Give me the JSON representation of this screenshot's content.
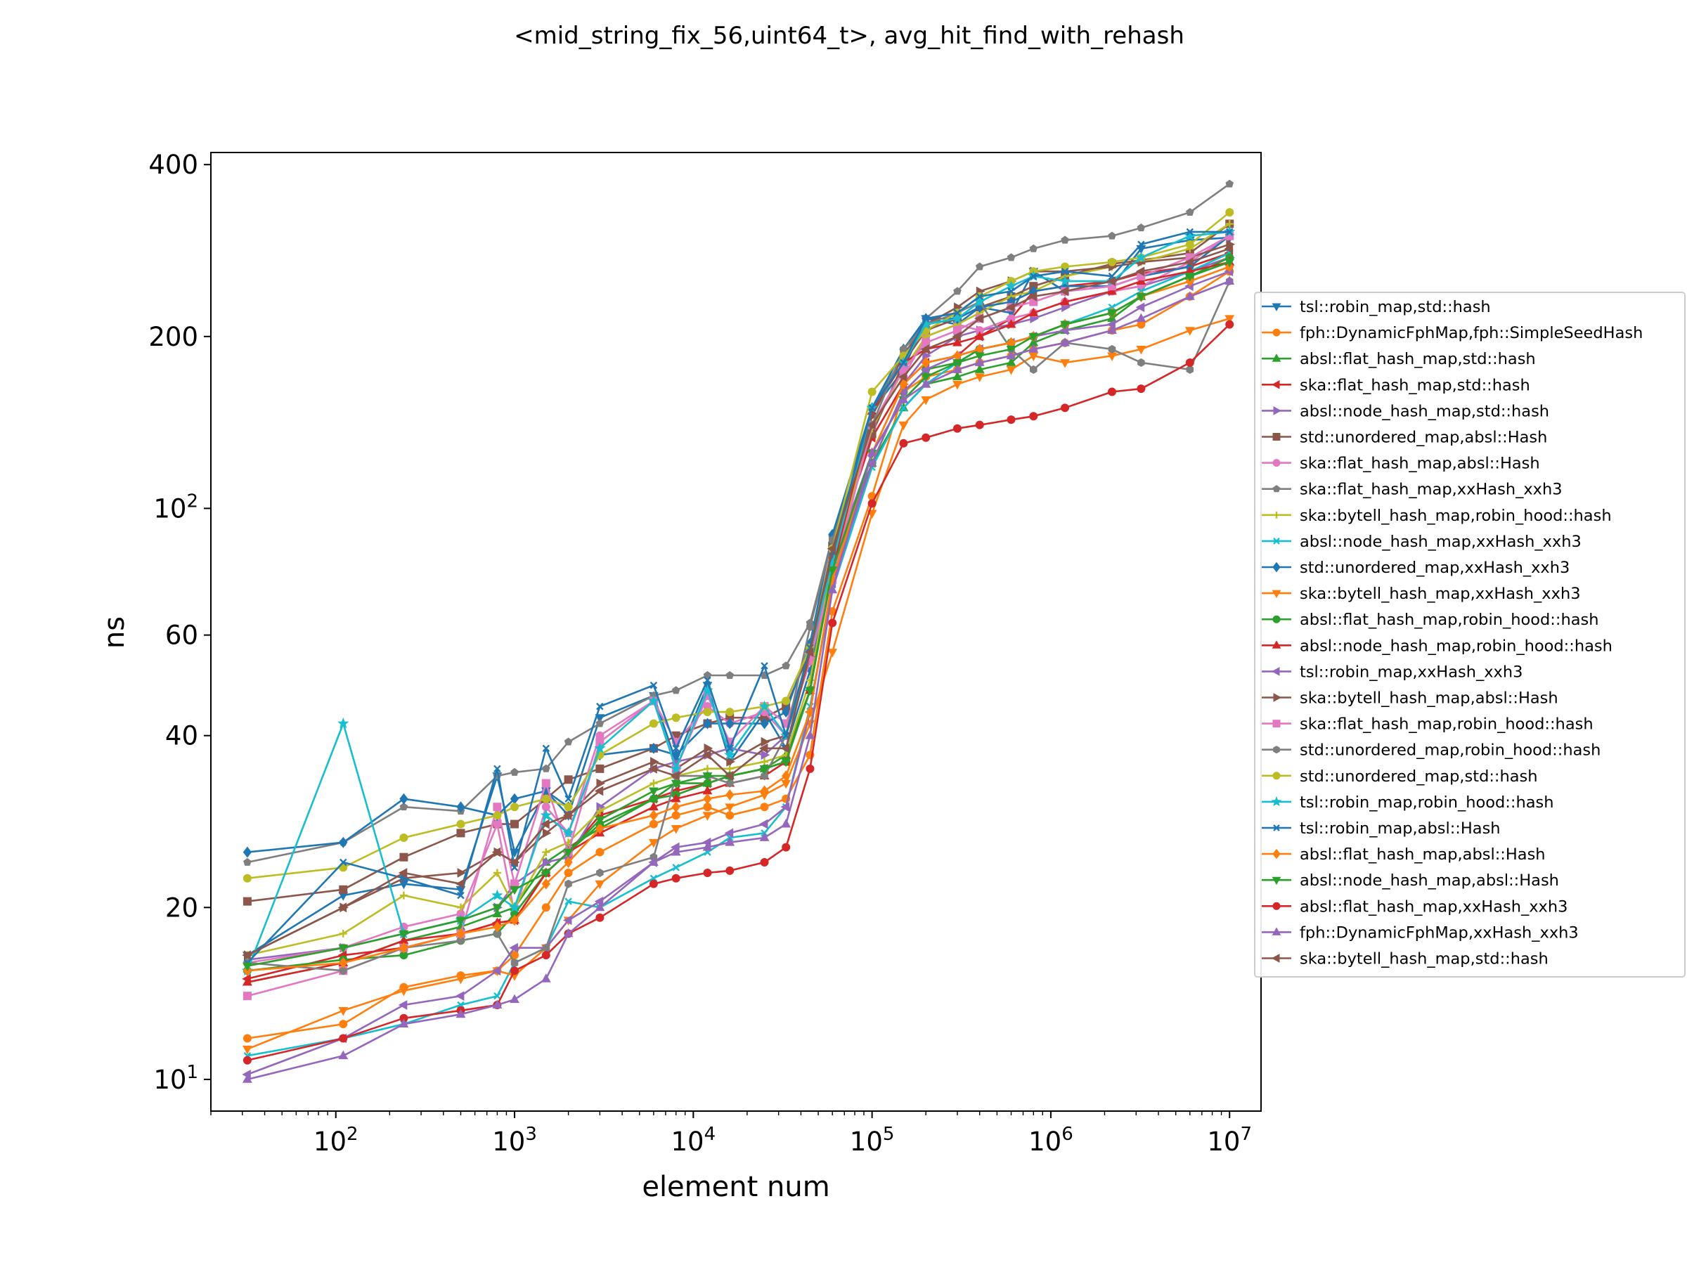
{
  "chart_data": {
    "type": "line",
    "title": "<mid_string_fix_56,uint64_t>, avg_hit_find_with_rehash",
    "xlabel": "element num",
    "ylabel": "ns",
    "xscale": "log",
    "yscale": "log",
    "xlim": [
      20,
      15000000
    ],
    "ylim": [
      8.8,
      420
    ],
    "x_ticks": [
      {
        "value": 100,
        "base": "10",
        "exp": "2"
      },
      {
        "value": 1000,
        "base": "10",
        "exp": "3"
      },
      {
        "value": 10000,
        "base": "10",
        "exp": "4"
      },
      {
        "value": 100000,
        "base": "10",
        "exp": "5"
      },
      {
        "value": 1000000,
        "base": "10",
        "exp": "6"
      },
      {
        "value": 10000000,
        "base": "10",
        "exp": "7"
      }
    ],
    "y_ticks": [
      {
        "value": 10,
        "base": "10",
        "exp": "1"
      },
      {
        "value": 20,
        "text": "20"
      },
      {
        "value": 40,
        "text": "40"
      },
      {
        "value": 60,
        "text": "60"
      },
      {
        "value": 100,
        "base": "10",
        "exp": "2"
      },
      {
        "value": 200,
        "text": "200"
      },
      {
        "value": 400,
        "text": "400"
      }
    ],
    "grid": false,
    "legend_position": "right, outside plot",
    "x": [
      32,
      110,
      240,
      500,
      800,
      1000,
      1500,
      2000,
      3000,
      6000,
      8000,
      12000,
      16000,
      25000,
      33000,
      45000,
      60000,
      100000,
      150000,
      200000,
      300000,
      400000,
      600000,
      800000,
      1200000,
      2200000,
      3200000,
      6000000,
      10000000
    ],
    "series": [
      {
        "name": "tsl::robin_map,std::hash",
        "color": "#1f77b4",
        "marker": "tri_down",
        "values": [
          16.5,
          21,
          22,
          21.5,
          34,
          25,
          32,
          29,
          43,
          47,
          36,
          49,
          36,
          44,
          38,
          52,
          78,
          148,
          175,
          215,
          210,
          225,
          220,
          260,
          240,
          245,
          285,
          295,
          298
        ]
      },
      {
        "name": "fph::DynamicFphMap,fph::SimpleSeedHash",
        "color": "#ff7f0e",
        "marker": "circle",
        "values": [
          11.8,
          12.5,
          14.5,
          15.2,
          15.5,
          16.5,
          20,
          23,
          25,
          28,
          29,
          30,
          29,
          30,
          31,
          37,
          66,
          105,
          160,
          170,
          175,
          180,
          185,
          190,
          195,
          205,
          210,
          235,
          260
        ]
      },
      {
        "name": "absl::flat_hash_map,std::hash",
        "color": "#2ca02c",
        "marker": "triangle_up",
        "values": [
          14.8,
          16,
          17.5,
          18.5,
          19.5,
          20,
          24,
          25.5,
          27.5,
          31,
          33,
          33,
          34,
          35,
          37,
          48,
          78,
          120,
          150,
          165,
          170,
          175,
          180,
          195,
          205,
          215,
          235,
          255,
          270
        ]
      },
      {
        "name": "ska::flat_hash_map,std::hash",
        "color": "#d62728",
        "marker": "triangle_left",
        "values": [
          15,
          16.5,
          17,
          18,
          18.8,
          19,
          23,
          25,
          29,
          31,
          32,
          33,
          34,
          35,
          36,
          48,
          82,
          133,
          165,
          180,
          185,
          200,
          215,
          240,
          245,
          250,
          258,
          265,
          280
        ]
      },
      {
        "name": "absl::node_hash_map,std::hash",
        "color": "#9467bd",
        "marker": "triangle_right",
        "values": [
          16.2,
          17,
          18,
          19,
          20,
          22,
          24,
          24.5,
          30,
          35,
          36,
          37,
          38,
          37,
          40,
          55,
          80,
          125,
          165,
          185,
          200,
          205,
          210,
          215,
          225,
          240,
          245,
          260,
          275
        ]
      },
      {
        "name": "std::unordered_map,absl::Hash",
        "color": "#8c564b",
        "marker": "square",
        "values": [
          20.5,
          21.5,
          24.5,
          27,
          28,
          28,
          31,
          33.5,
          35,
          38,
          40,
          42,
          43,
          43,
          45,
          56,
          86,
          135,
          180,
          205,
          215,
          225,
          235,
          245,
          255,
          268,
          272,
          280,
          315
        ]
      },
      {
        "name": "ska::flat_hash_map,absl::Hash",
        "color": "#e377c2",
        "marker": "circle",
        "values": [
          16,
          17,
          18.5,
          19.5,
          28,
          19.5,
          30,
          27,
          40,
          46,
          39,
          45,
          42,
          44,
          40,
          54,
          78,
          140,
          170,
          200,
          210,
          205,
          215,
          220,
          230,
          240,
          245,
          270,
          300
        ]
      },
      {
        "name": "ska::flat_hash_map,xxHash_xxh3",
        "color": "#7f7f7f",
        "marker": "pentagon",
        "values": [
          24,
          26,
          30,
          29.5,
          34,
          34.5,
          35,
          39,
          42,
          47,
          48,
          51,
          51,
          51,
          53,
          63,
          89,
          150,
          185,
          215,
          240,
          265,
          275,
          285,
          295,
          300,
          310,
          330,
          370
        ]
      },
      {
        "name": "ska::bytell_hash_map,robin_hood::hash",
        "color": "#bcbd22",
        "marker": "plus",
        "values": [
          16.5,
          18,
          21,
          20,
          23,
          20,
          25,
          26,
          29.5,
          33,
          34,
          35,
          35,
          36,
          37,
          50,
          80,
          138,
          175,
          200,
          210,
          220,
          235,
          240,
          255,
          265,
          270,
          285,
          315
        ]
      },
      {
        "name": "absl::node_hash_map,xxHash_xxh3",
        "color": "#17becf",
        "marker": "x",
        "values": [
          11,
          11.8,
          12.5,
          13.5,
          14,
          16,
          17,
          20.5,
          20,
          22.5,
          23.5,
          25,
          26.5,
          27,
          30,
          45,
          72,
          118,
          150,
          165,
          180,
          190,
          195,
          200,
          210,
          225,
          240,
          260,
          280
        ]
      },
      {
        "name": "std::unordered_map,xxHash_xxh3",
        "color": "#1f77b4",
        "marker": "diamond",
        "values": [
          25,
          26,
          31,
          30,
          29,
          31,
          32,
          30,
          37,
          38,
          37,
          42,
          42,
          42,
          44,
          58,
          90,
          150,
          190,
          215,
          215,
          225,
          230,
          240,
          245,
          245,
          255,
          265,
          300
        ]
      },
      {
        "name": "ska::bytell_hash_map,xxHash_xxh3",
        "color": "#ff7f0e",
        "marker": "tri_down",
        "values": [
          11.3,
          13.2,
          14.3,
          15,
          15.5,
          15.2,
          17,
          19,
          22,
          26,
          27.5,
          29,
          30,
          31.5,
          33,
          42,
          56,
          98,
          140,
          155,
          165,
          170,
          175,
          185,
          180,
          185,
          190,
          205,
          215
        ]
      },
      {
        "name": "absl::flat_hash_map,robin_hood::hash",
        "color": "#2ca02c",
        "marker": "circle",
        "values": [
          15.5,
          16.2,
          16.5,
          17.5,
          18,
          19.5,
          23,
          25,
          28,
          31,
          31.5,
          33,
          34,
          35,
          36,
          48,
          79,
          120,
          160,
          175,
          180,
          190,
          195,
          200,
          210,
          220,
          235,
          255,
          275
        ]
      },
      {
        "name": "absl::node_hash_map,robin_hood::hash",
        "color": "#d62728",
        "marker": "triangle_up",
        "values": [
          14.8,
          16,
          17.5,
          18,
          18.8,
          19,
          23,
          25,
          27,
          30,
          31,
          32,
          33,
          34,
          36,
          48,
          78,
          148,
          180,
          190,
          195,
          200,
          210,
          220,
          230,
          240,
          250,
          260,
          270
        ]
      },
      {
        "name": "tsl::robin_map,xxHash_xxh3",
        "color": "#9467bd",
        "marker": "triangle_left",
        "values": [
          10.2,
          11.8,
          13.5,
          14,
          15.5,
          17,
          17,
          19,
          20.5,
          24,
          25.5,
          26,
          27,
          28,
          30,
          44,
          74,
          120,
          160,
          175,
          185,
          190,
          195,
          200,
          205,
          210,
          225,
          245,
          260
        ]
      },
      {
        "name": "ska::bytell_hash_map,absl::Hash",
        "color": "#8c564b",
        "marker": "triangle_right",
        "values": [
          16.5,
          20,
          22.5,
          23,
          25,
          24,
          27,
          29,
          33,
          36,
          35,
          38,
          36,
          39,
          40,
          55,
          82,
          145,
          185,
          210,
          225,
          240,
          250,
          260,
          260,
          265,
          270,
          275,
          290
        ]
      },
      {
        "name": "ska::flat_hash_map,robin_hood::hash",
        "color": "#e377c2",
        "marker": "square",
        "values": [
          14,
          15.5,
          17,
          18,
          30,
          22,
          33,
          25,
          39,
          46,
          35,
          47,
          39,
          45,
          42,
          55,
          75,
          140,
          175,
          195,
          205,
          215,
          225,
          230,
          240,
          245,
          255,
          275,
          300
        ]
      },
      {
        "name": "std::unordered_map,robin_hood::hash",
        "color": "#7f7f7f",
        "marker": "hexagon",
        "values": [
          16,
          15.5,
          17,
          17.5,
          18,
          16,
          17,
          22,
          23,
          24.5,
          34,
          34,
          33,
          34,
          40,
          62,
          88,
          140,
          190,
          210,
          220,
          230,
          190,
          175,
          195,
          190,
          180,
          175,
          250
        ]
      },
      {
        "name": "std::unordered_map,std::hash",
        "color": "#bcbd22",
        "marker": "circle",
        "values": [
          22.5,
          23.5,
          26.5,
          28,
          29,
          30,
          31,
          30,
          37,
          42,
          43,
          44,
          44,
          45,
          46,
          57,
          85,
          160,
          185,
          205,
          220,
          235,
          250,
          260,
          265,
          270,
          275,
          290,
          330
        ]
      },
      {
        "name": "tsl::robin_map,robin_hood::hash",
        "color": "#17becf",
        "marker": "star",
        "values": [
          15.5,
          42,
          18,
          19,
          21,
          20,
          29,
          27,
          38,
          46,
          35,
          48,
          37,
          45,
          40,
          56,
          80,
          150,
          180,
          210,
          215,
          230,
          245,
          255,
          250,
          250,
          275,
          300,
          305
        ]
      },
      {
        "name": "tsl::robin_map,absl::Hash",
        "color": "#1f77b4",
        "marker": "x",
        "values": [
          16,
          24,
          22.5,
          21,
          35,
          23.5,
          38,
          31,
          45,
          49,
          38,
          50,
          38,
          53,
          40,
          57,
          84,
          150,
          180,
          215,
          220,
          235,
          240,
          255,
          260,
          255,
          290,
          305,
          305
        ]
      },
      {
        "name": "absl::flat_hash_map,absl::Hash",
        "color": "#ff7f0e",
        "marker": "diamond",
        "values": [
          15.5,
          16,
          17,
          18,
          18.5,
          19,
          22,
          24,
          27.5,
          29,
          30,
          31,
          31.5,
          32,
          34,
          44,
          75,
          125,
          165,
          180,
          185,
          190,
          195,
          200,
          210,
          220,
          235,
          250,
          265
        ]
      },
      {
        "name": "absl::node_hash_map,absl::Hash",
        "color": "#2ca02c",
        "marker": "tri_down",
        "values": [
          15.8,
          17,
          18,
          19,
          20,
          21.5,
          23,
          25,
          28.5,
          32,
          33,
          34,
          34,
          35,
          36,
          48,
          78,
          125,
          155,
          170,
          180,
          185,
          190,
          200,
          210,
          220,
          235,
          255,
          270
        ]
      },
      {
        "name": "absl::flat_hash_map,xxHash_xxh3",
        "color": "#d62728",
        "marker": "circle",
        "values": [
          10.8,
          11.8,
          12.8,
          13.2,
          13.5,
          15.5,
          16.5,
          18,
          19.2,
          22,
          22.5,
          23,
          23.2,
          24,
          25.5,
          35,
          63,
          102,
          130,
          133,
          138,
          140,
          143,
          145,
          150,
          160,
          162,
          180,
          210
        ]
      },
      {
        "name": "fph::DynamicFphMap,xxHash_xxh3",
        "color": "#9467bd",
        "marker": "triangle_up",
        "values": [
          10,
          11,
          12.5,
          13,
          13.5,
          13.8,
          15,
          18,
          20,
          24,
          25,
          25.5,
          26,
          26.5,
          28,
          40,
          72,
          125,
          155,
          165,
          175,
          180,
          185,
          190,
          195,
          205,
          215,
          235,
          250
        ]
      },
      {
        "name": "ska::bytell_hash_map,std::hash",
        "color": "#8c564b",
        "marker": "triangle_left",
        "values": [
          16.5,
          20,
          23,
          22,
          25,
          24,
          28,
          29,
          32,
          35,
          34,
          37,
          34,
          38,
          38,
          56,
          85,
          140,
          170,
          190,
          200,
          215,
          225,
          235,
          240,
          250,
          260,
          270,
          285
        ]
      }
    ]
  }
}
